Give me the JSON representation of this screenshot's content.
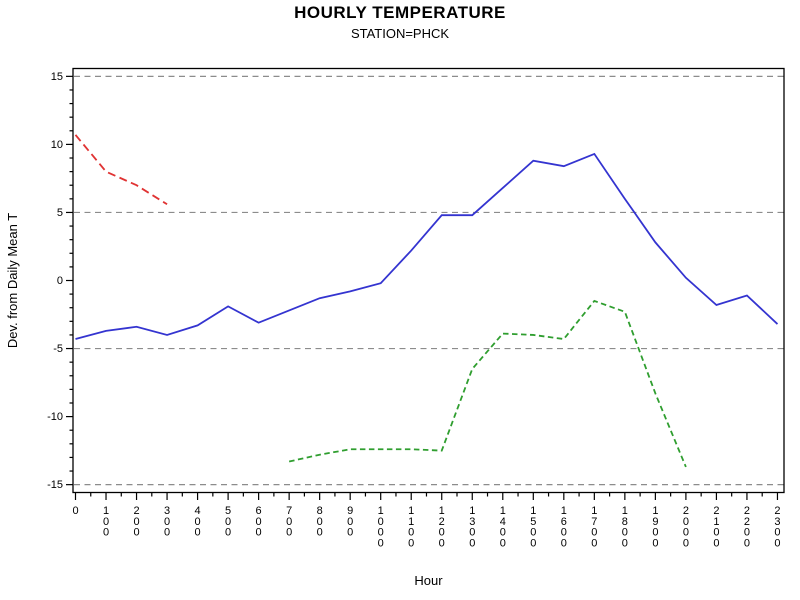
{
  "page": {
    "title": "HOURLY TEMPERATURE",
    "subtitle": "STATION=PHCK"
  },
  "chart_data": {
    "type": "line",
    "title": "HOURLY TEMPERATURE",
    "subtitle": "STATION=PHCK",
    "xlabel": "Hour",
    "ylabel": "Dev. from Daily Mean T",
    "x_tick_labels": [
      "0",
      "100",
      "200",
      "300",
      "400",
      "500",
      "600",
      "700",
      "800",
      "900",
      "1000",
      "1100",
      "1200",
      "1300",
      "1400",
      "1500",
      "1600",
      "1700",
      "1800",
      "1900",
      "2000",
      "2100",
      "2200",
      "2300"
    ],
    "y_tick_labels": [
      "-15",
      "-10",
      "-5",
      "0",
      "5",
      "10",
      "15"
    ],
    "y_ticks": [
      -15,
      -10,
      -5,
      0,
      5,
      10,
      15
    ],
    "y_minor_step": 1,
    "x_minor_step": 0.5,
    "ref_lines": [
      15,
      5,
      -5,
      -15
    ],
    "ylim": [
      -15.6,
      15.6
    ],
    "xlim_hours": [
      0,
      23
    ],
    "legend": "none",
    "grid": "horizontal dashed reference lines only",
    "colors": {
      "frame": "#000000",
      "refline": "#8c8c8c",
      "blue": "#3434d0",
      "red": "#e03333",
      "green": "#2f9e2f"
    },
    "series": [
      {
        "name": "blue-solid",
        "color": "#3434d0",
        "line_style": "solid",
        "start_hour": 0,
        "values": [
          -4.3,
          -3.7,
          -3.4,
          -4.0,
          -3.3,
          -1.9,
          -3.1,
          -2.2,
          -1.3,
          -0.8,
          -0.2,
          2.2,
          4.8,
          4.8,
          6.8,
          8.8,
          8.4,
          9.3,
          6.0,
          2.8,
          0.2,
          -1.8,
          -1.1,
          -3.2
        ]
      },
      {
        "name": "red-dashed",
        "color": "#e03333",
        "line_style": "dashed-long",
        "start_hour": 0,
        "values": [
          10.7,
          8.0,
          7.0,
          5.6
        ]
      },
      {
        "name": "green-dashed",
        "color": "#2f9e2f",
        "line_style": "dashed-short",
        "start_hour": 7,
        "values": [
          -13.3,
          -12.8,
          -12.4,
          -12.4,
          -12.4,
          -12.5,
          -6.5,
          -3.9,
          -4.0,
          -4.3,
          -1.5,
          -2.3,
          -8.3,
          -13.7
        ]
      }
    ]
  }
}
